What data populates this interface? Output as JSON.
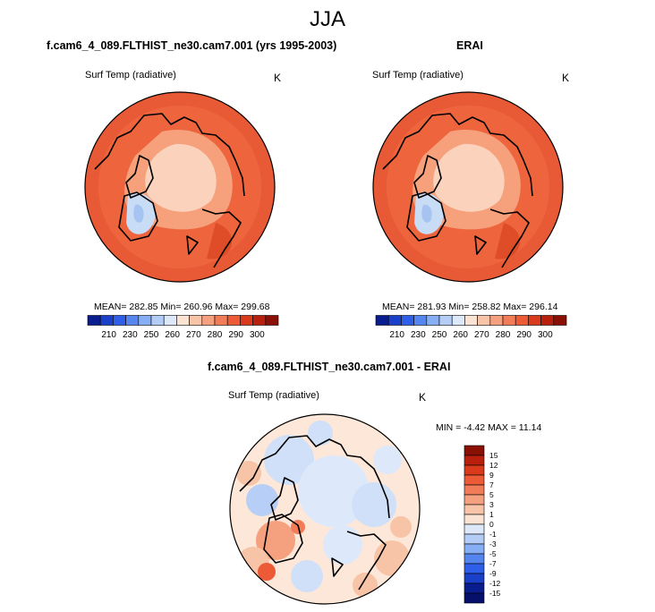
{
  "figure_title": "JJA",
  "panels": [
    {
      "title": "f.cam6_4_089.FLTHIST_ne30.cam7.001 (yrs 1995-2003)",
      "variable": "Surf Temp (radiative)",
      "units": "K",
      "stats_text": "MEAN= 282.85  Min= 260.96  Max= 299.68"
    },
    {
      "title": "ERAI",
      "variable": "Surf Temp (radiative)",
      "units": "K",
      "stats_text": "MEAN= 281.93  Min= 258.82  Max= 296.14"
    },
    {
      "title": "f.cam6_4_089.FLTHIST_ne30.cam7.001 - ERAI",
      "variable": "Surf Temp (radiative)",
      "units": "K",
      "stats_text": "MIN =  -4.42 MAX =  11.14"
    }
  ],
  "chart_data": [
    {
      "type": "heatmap",
      "title": "f.cam6_4_089.FLTHIST_ne30.cam7.001 (yrs 1995-2003)",
      "projection": "north polar stereographic",
      "stats": {
        "mean": 282.85,
        "min": 260.96,
        "max": 299.68
      },
      "colorbar": {
        "orientation": "horizontal",
        "tick_labels": [
          "210",
          "230",
          "250",
          "260",
          "270",
          "280",
          "290",
          "300"
        ],
        "colors": [
          "#0a1d8f",
          "#1a3fc9",
          "#2f5ee8",
          "#5586ef",
          "#86aef4",
          "#b3cdf7",
          "#dde9fb",
          "#fbe3d4",
          "#f8c4a8",
          "#f5a07e",
          "#f27c58",
          "#ec5a36",
          "#d93a1c",
          "#b81f0d",
          "#8a0f05"
        ]
      }
    },
    {
      "type": "heatmap",
      "title": "ERAI",
      "projection": "north polar stereographic",
      "stats": {
        "mean": 281.93,
        "min": 258.82,
        "max": 296.14
      },
      "colorbar": {
        "orientation": "horizontal",
        "tick_labels": [
          "210",
          "230",
          "250",
          "260",
          "270",
          "280",
          "290",
          "300"
        ],
        "colors": [
          "#0a1d8f",
          "#1a3fc9",
          "#2f5ee8",
          "#5586ef",
          "#86aef4",
          "#b3cdf7",
          "#dde9fb",
          "#fbe3d4",
          "#f8c4a8",
          "#f5a07e",
          "#f27c58",
          "#ec5a36",
          "#d93a1c",
          "#b81f0d",
          "#8a0f05"
        ]
      }
    },
    {
      "type": "heatmap",
      "title": "f.cam6_4_089.FLTHIST_ne30.cam7.001 - ERAI",
      "projection": "north polar stereographic",
      "stats": {
        "min": -4.42,
        "max": 11.14
      },
      "colorbar": {
        "orientation": "vertical",
        "tick_labels": [
          "15",
          "12",
          "9",
          "7",
          "5",
          "3",
          "1",
          "0",
          "-1",
          "-3",
          "-5",
          "-7",
          "-9",
          "-12",
          "-15"
        ],
        "colors": [
          "#8a0f05",
          "#b81f0d",
          "#d93a1c",
          "#ec5a36",
          "#f27c58",
          "#f5a07e",
          "#f8c4a8",
          "#fbe3d4",
          "#dde9fb",
          "#b3cdf7",
          "#86aef4",
          "#5586ef",
          "#2f5ee8",
          "#1a3fc9",
          "#0a1d8f",
          "#06106a"
        ]
      }
    }
  ]
}
